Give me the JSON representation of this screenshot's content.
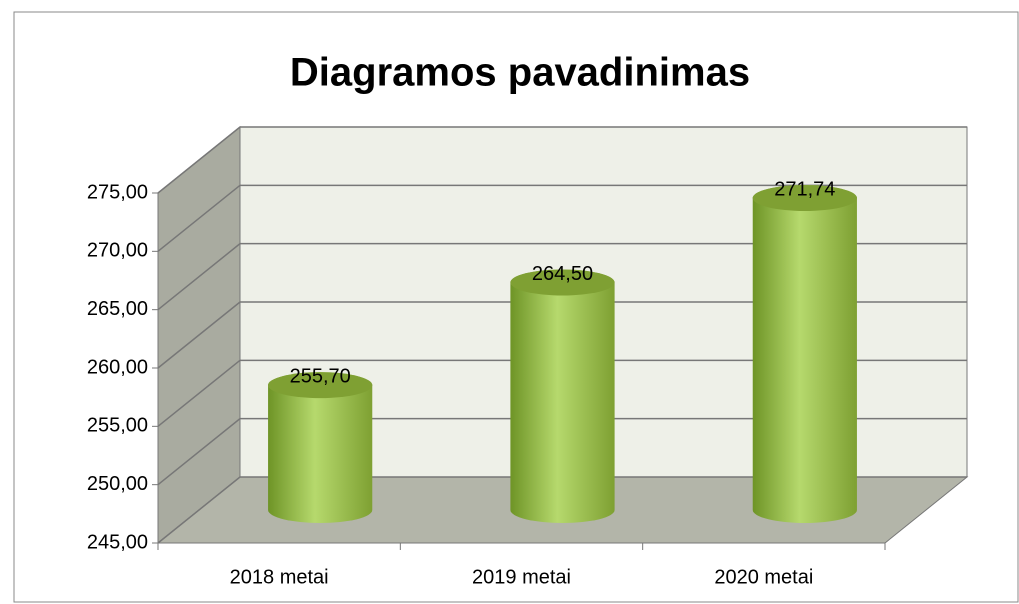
{
  "chart_data": {
    "type": "bar3d",
    "title": "Diagramos pavadinimas",
    "categories": [
      "2018 metai",
      "2019 metai",
      "2020 metai"
    ],
    "values": [
      255.7,
      264.5,
      271.74
    ],
    "value_labels": [
      "255,70",
      "264,50",
      "271,74"
    ],
    "color": "#8db83e",
    "ylim": [
      245,
      275
    ],
    "yticks": [
      {
        "value": 245,
        "label": "245,00"
      },
      {
        "value": 250,
        "label": "250,00"
      },
      {
        "value": 255,
        "label": "255,00"
      },
      {
        "value": 260,
        "label": "260,00"
      },
      {
        "value": 265,
        "label": "265,00"
      },
      {
        "value": 270,
        "label": "270,00"
      },
      {
        "value": 275,
        "label": "275,00"
      }
    ],
    "grid": true
  }
}
